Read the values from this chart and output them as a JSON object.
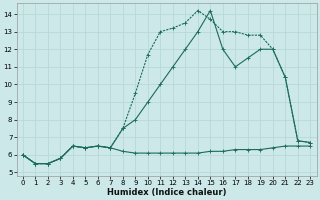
{
  "xlabel": "Humidex (Indice chaleur)",
  "bg_color": "#cce8e8",
  "grid_color": "#b8d8d8",
  "line_color": "#1a6b5a",
  "xlim": [
    -0.5,
    23.5
  ],
  "ylim": [
    4.8,
    14.6
  ],
  "yticks": [
    5,
    6,
    7,
    8,
    9,
    10,
    11,
    12,
    13,
    14
  ],
  "xticks": [
    0,
    1,
    2,
    3,
    4,
    5,
    6,
    7,
    8,
    9,
    10,
    11,
    12,
    13,
    14,
    15,
    16,
    17,
    18,
    19,
    20,
    21,
    22,
    23
  ],
  "series1_x": [
    0,
    1,
    2,
    3,
    4,
    5,
    6,
    7,
    8,
    9,
    10,
    11,
    12,
    13,
    14,
    15,
    16,
    17,
    18,
    19,
    20,
    21,
    22,
    23
  ],
  "series1_y": [
    6.0,
    5.5,
    5.5,
    5.8,
    6.5,
    6.4,
    6.5,
    6.4,
    6.2,
    6.1,
    6.1,
    6.1,
    6.1,
    6.1,
    6.1,
    6.2,
    6.2,
    6.3,
    6.3,
    6.3,
    6.4,
    6.5,
    6.5,
    6.5
  ],
  "series2_x": [
    0,
    1,
    2,
    3,
    4,
    5,
    6,
    7,
    8,
    9,
    10,
    11,
    12,
    13,
    14,
    15,
    16,
    17,
    18,
    19,
    20,
    21,
    22,
    23
  ],
  "series2_y": [
    6.0,
    5.5,
    5.5,
    5.8,
    6.5,
    6.4,
    6.5,
    6.4,
    7.5,
    9.5,
    11.7,
    13.0,
    13.2,
    13.5,
    14.2,
    13.7,
    13.0,
    13.0,
    12.8,
    12.8,
    12.0,
    10.4,
    6.8,
    6.7
  ],
  "series3_x": [
    0,
    1,
    2,
    3,
    4,
    5,
    6,
    7,
    8,
    9,
    10,
    11,
    12,
    13,
    14,
    15,
    16,
    17,
    18,
    19,
    20,
    21,
    22,
    23
  ],
  "series3_y": [
    6.0,
    5.5,
    5.5,
    5.8,
    6.5,
    6.4,
    6.5,
    6.4,
    7.5,
    8.0,
    9.0,
    10.0,
    11.0,
    12.0,
    13.0,
    14.2,
    12.0,
    11.0,
    11.5,
    12.0,
    12.0,
    10.4,
    6.8,
    6.7
  ],
  "marker_size": 2.5,
  "line_width": 0.8,
  "tick_fontsize": 5.0,
  "xlabel_fontsize": 6.0
}
